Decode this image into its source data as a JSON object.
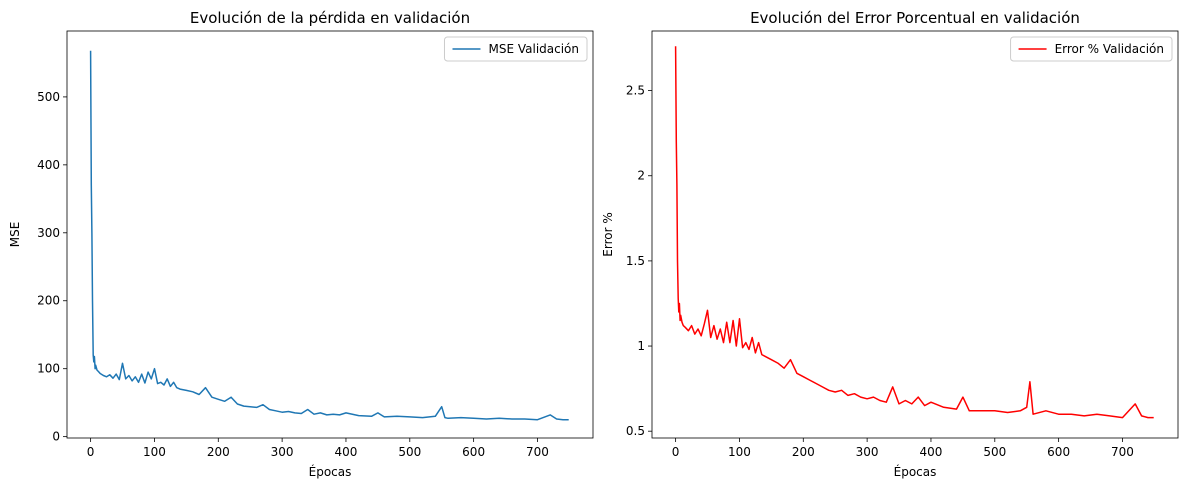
{
  "chart_data": [
    {
      "type": "line",
      "title": "Evolución de la pérdida en validación",
      "xlabel": "Épocas",
      "ylabel": "MSE",
      "xlim": [
        -37,
        787
      ],
      "ylim": [
        -2,
        597
      ],
      "xticks": [
        0,
        100,
        200,
        300,
        400,
        500,
        600,
        700
      ],
      "yticks": [
        0,
        100,
        200,
        300,
        400,
        500
      ],
      "legend_position": "top-right",
      "grid": false,
      "series": [
        {
          "name": "MSE Validación",
          "color": "#1f77b4",
          "x": [
            0,
            1,
            2,
            3,
            4,
            5,
            6,
            7,
            8,
            10,
            12,
            15,
            20,
            25,
            30,
            35,
            40,
            45,
            50,
            55,
            60,
            65,
            70,
            75,
            80,
            85,
            90,
            95,
            100,
            105,
            110,
            115,
            120,
            125,
            130,
            135,
            140,
            150,
            160,
            170,
            180,
            190,
            200,
            210,
            220,
            230,
            240,
            250,
            260,
            270,
            280,
            290,
            300,
            310,
            320,
            330,
            340,
            350,
            360,
            370,
            380,
            390,
            400,
            420,
            440,
            450,
            460,
            480,
            500,
            520,
            540,
            550,
            555,
            560,
            580,
            600,
            620,
            640,
            660,
            680,
            700,
            720,
            730,
            740,
            749
          ],
          "values": [
            568,
            370,
            300,
            200,
            120,
            110,
            118,
            100,
            105,
            98,
            96,
            93,
            90,
            88,
            91,
            86,
            92,
            84,
            108,
            85,
            90,
            82,
            88,
            80,
            92,
            79,
            95,
            85,
            100,
            78,
            80,
            76,
            85,
            74,
            80,
            72,
            70,
            68,
            66,
            62,
            72,
            58,
            55,
            52,
            58,
            48,
            45,
            44,
            43,
            47,
            40,
            38,
            36,
            37,
            35,
            34,
            40,
            33,
            35,
            32,
            33,
            32,
            35,
            31,
            30,
            35,
            29,
            30,
            29,
            28,
            30,
            44,
            28,
            27,
            28,
            27,
            26,
            27,
            26,
            26,
            25,
            32,
            26,
            25,
            25
          ]
        }
      ]
    },
    {
      "type": "line",
      "title": "Evolución del Error Porcentual en validación",
      "xlabel": "Épocas",
      "ylabel": "Error %",
      "xlim": [
        -37,
        787
      ],
      "ylim": [
        0.46,
        2.85
      ],
      "xticks": [
        0,
        100,
        200,
        300,
        400,
        500,
        600,
        700
      ],
      "yticks": [
        0.5,
        1.0,
        1.5,
        2.0,
        2.5
      ],
      "legend_position": "top-right",
      "grid": false,
      "series": [
        {
          "name": "Error % Validación",
          "color": "#ff0000",
          "x": [
            0,
            1,
            2,
            3,
            4,
            5,
            6,
            7,
            8,
            10,
            12,
            15,
            20,
            25,
            30,
            35,
            40,
            45,
            50,
            55,
            60,
            65,
            70,
            75,
            80,
            85,
            90,
            95,
            100,
            105,
            110,
            115,
            120,
            125,
            130,
            135,
            140,
            150,
            160,
            170,
            180,
            190,
            200,
            210,
            220,
            230,
            240,
            250,
            260,
            270,
            280,
            290,
            300,
            310,
            320,
            330,
            340,
            350,
            360,
            370,
            380,
            390,
            400,
            420,
            440,
            450,
            460,
            480,
            500,
            520,
            540,
            550,
            555,
            560,
            580,
            600,
            620,
            640,
            660,
            680,
            700,
            720,
            730,
            740,
            749
          ],
          "values": [
            2.76,
            2.2,
            1.95,
            1.5,
            1.28,
            1.2,
            1.25,
            1.15,
            1.18,
            1.14,
            1.12,
            1.11,
            1.09,
            1.12,
            1.07,
            1.1,
            1.06,
            1.13,
            1.21,
            1.05,
            1.12,
            1.04,
            1.1,
            1.02,
            1.14,
            1.02,
            1.15,
            1.0,
            1.16,
            0.99,
            1.02,
            0.98,
            1.05,
            0.96,
            1.02,
            0.95,
            0.94,
            0.92,
            0.9,
            0.87,
            0.92,
            0.84,
            0.82,
            0.8,
            0.78,
            0.76,
            0.74,
            0.73,
            0.74,
            0.71,
            0.72,
            0.7,
            0.69,
            0.7,
            0.68,
            0.67,
            0.76,
            0.66,
            0.68,
            0.66,
            0.7,
            0.65,
            0.67,
            0.64,
            0.63,
            0.7,
            0.62,
            0.62,
            0.62,
            0.61,
            0.62,
            0.64,
            0.79,
            0.6,
            0.62,
            0.6,
            0.6,
            0.59,
            0.6,
            0.59,
            0.58,
            0.66,
            0.59,
            0.58,
            0.58
          ]
        }
      ]
    }
  ]
}
